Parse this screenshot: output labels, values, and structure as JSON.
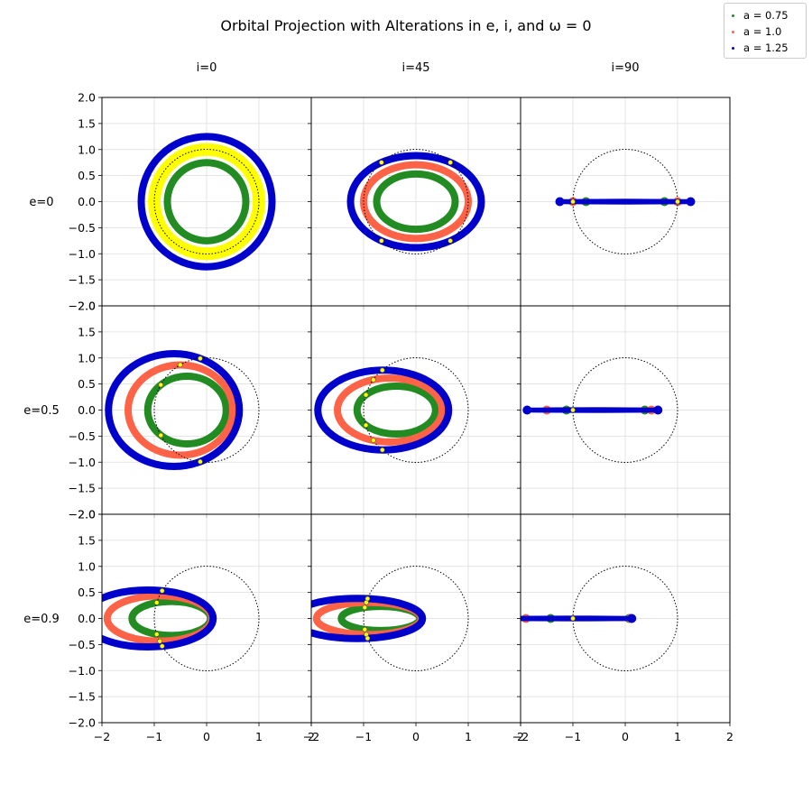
{
  "chart_data": {
    "type": "scatter",
    "title": "Orbital Projection with Alterations in e, i, and ω = 0",
    "column_labels": [
      "i=0",
      "i=45",
      "i=90"
    ],
    "row_labels": [
      "e=0",
      "e=0.5",
      "e=0.9"
    ],
    "inclinations_deg": [
      0,
      45,
      90
    ],
    "eccentricities": [
      0,
      0.5,
      0.9
    ],
    "omega": 0,
    "xlim": [
      -2,
      2
    ],
    "ylim": [
      -2,
      2
    ],
    "x_ticks": [
      "−2",
      "−1",
      "0",
      "1",
      "2"
    ],
    "y_ticks": [
      "2.0",
      "1.5",
      "1.0",
      "0.5",
      "0.0",
      "−0.5",
      "−1.0",
      "−1.5",
      "−2.0"
    ],
    "grid": true,
    "reference_circle_radius": 1,
    "legend_position": "top-right",
    "series": [
      {
        "name": "a = 0.75",
        "a": 0.75,
        "color": "#228b22"
      },
      {
        "name": "a = 1.0",
        "a": 1.0,
        "color": "#ff6347"
      },
      {
        "name": "a = 1.25",
        "a": 1.25,
        "color": "#0000cd"
      }
    ],
    "marker_color": "#ffff00"
  }
}
